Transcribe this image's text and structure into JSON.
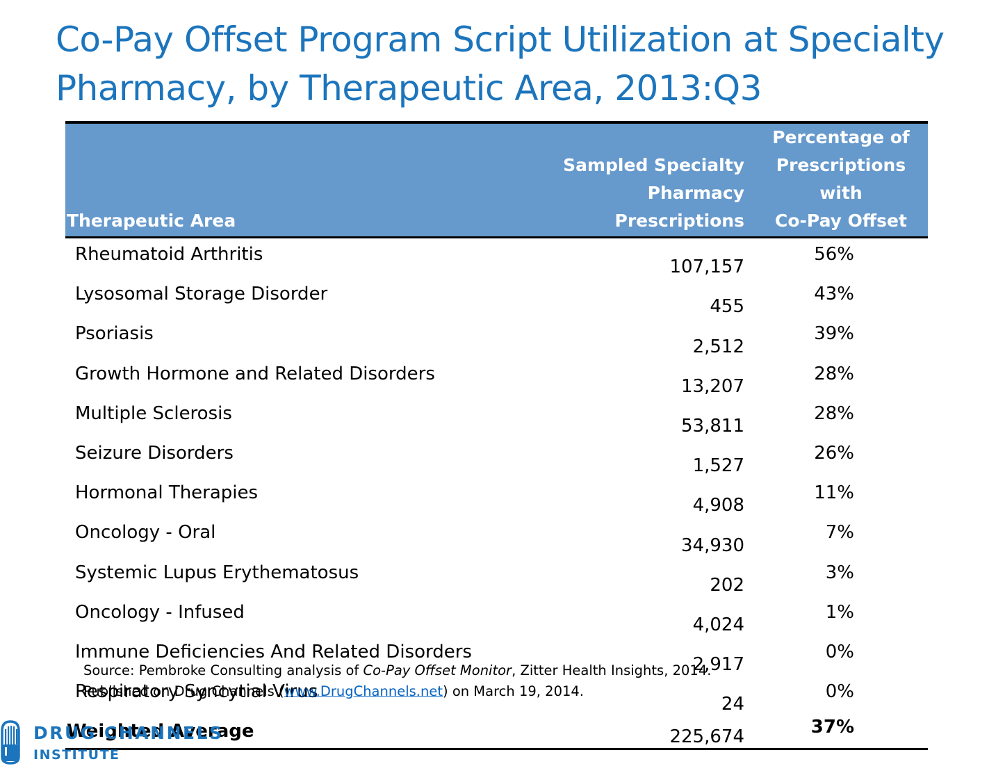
{
  "title": "Co-Pay Offset Program Script Utilization at Specialty Pharmacy, by Therapeutic Area, 2013:Q3",
  "table": {
    "headers": {
      "area": "Therapeutic Area",
      "prescriptions": [
        "Sampled Specialty",
        "Pharmacy",
        "Prescriptions"
      ],
      "percentage": [
        "Percentage of",
        "Prescriptions with",
        "Co-Pay Offset"
      ]
    },
    "rows": [
      {
        "area": "Rheumatoid Arthritis",
        "prescriptions": "107,157",
        "percentage": "56%"
      },
      {
        "area": "Lysosomal Storage Disorder",
        "prescriptions": "455",
        "percentage": "43%"
      },
      {
        "area": "Psoriasis",
        "prescriptions": "2,512",
        "percentage": "39%"
      },
      {
        "area": "Growth Hormone and Related Disorders",
        "prescriptions": "13,207",
        "percentage": "28%"
      },
      {
        "area": "Multiple Sclerosis",
        "prescriptions": "53,811",
        "percentage": "28%"
      },
      {
        "area": "Seizure Disorders",
        "prescriptions": "1,527",
        "percentage": "26%"
      },
      {
        "area": "Hormonal Therapies",
        "prescriptions": "4,908",
        "percentage": "11%"
      },
      {
        "area": "Oncology - Oral",
        "prescriptions": "34,930",
        "percentage": "7%"
      },
      {
        "area": "Systemic Lupus Erythematosus",
        "prescriptions": "202",
        "percentage": "3%"
      },
      {
        "area": "Oncology - Infused",
        "prescriptions": "4,024",
        "percentage": "1%"
      },
      {
        "area": "Immune Deficiencies And Related Disorders",
        "prescriptions": "2,917",
        "percentage": "0%"
      },
      {
        "area": "Respiratory Syncytial Virus",
        "prescriptions": "24",
        "percentage": "0%"
      }
    ],
    "total": {
      "label": "Weighted Average",
      "prescriptions": "225,674",
      "percentage": "37%"
    }
  },
  "source": {
    "line1_prefix": "Source: Pembroke Consulting analysis of ",
    "line1_italic": "Co-Pay Offset Monitor",
    "line1_suffix": ", Zitter Health Insights, 2014.",
    "line2_prefix": "Published on Drug Channels (",
    "line2_link": "www.DrugChannels.net",
    "line2_suffix": ") on March 19, 2014."
  },
  "logo": {
    "line1": "DRUG CHANNELS",
    "line2": "INSTITUTE"
  },
  "colors": {
    "title": "#1c75bc",
    "header_fill": "#6699cc",
    "header_text": "#ffffff",
    "link": "#0563c1",
    "logo": "#1c75bc"
  }
}
